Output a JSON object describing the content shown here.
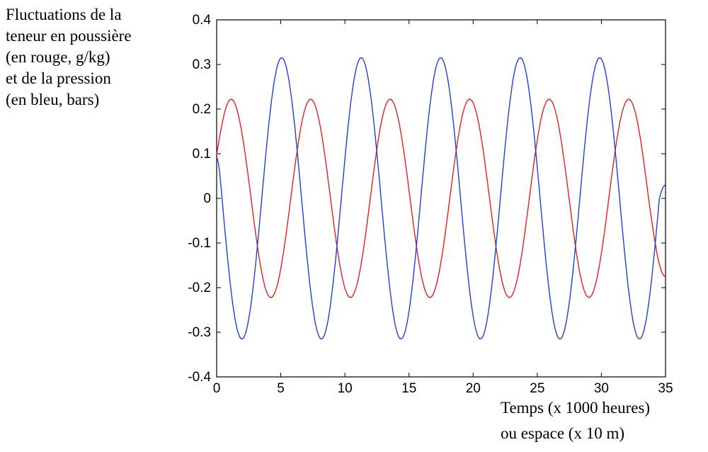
{
  "chart_data": {
    "type": "line",
    "ylabel_lines": [
      "Fluctuations de la",
      "teneur en poussière",
      "(en rouge, g/kg)",
      "et de la pression",
      "(en bleu, bars)"
    ],
    "xlabel_lines": [
      "Temps (x 1000 heures)",
      "ou espace (x 10 m)"
    ],
    "xlim": [
      0,
      35
    ],
    "ylim": [
      -0.4,
      0.4
    ],
    "xticks": [
      "0",
      "5",
      "10",
      "15",
      "20",
      "25",
      "30",
      "35"
    ],
    "yticks": [
      "0.4",
      "0.3",
      "0.2",
      "0.1",
      "0",
      "-0.1",
      "-0.2",
      "-0.3",
      "-0.4"
    ],
    "grid": false,
    "series": [
      {
        "color": "#e02020",
        "x": [
          0,
          1.13,
          2.68,
          4.23,
          5.78,
          7.33,
          8.88,
          10.43,
          11.98,
          13.53,
          15.08,
          16.63,
          18.18,
          19.73,
          21.28,
          22.83,
          24.38,
          25.93,
          27.48,
          29.03,
          30.58,
          32.13,
          33.68,
          35
        ],
        "y": [
          0.098,
          0.222,
          0.001,
          -0.222,
          0.0,
          0.222,
          0.0,
          -0.222,
          0.0,
          0.222,
          0.0,
          -0.222,
          0.0,
          0.222,
          0.0,
          -0.222,
          0.0,
          0.222,
          0.0,
          -0.222,
          0.0,
          0.222,
          0.0,
          -0.175
        ]
      },
      {
        "color": "#2040d0",
        "x": [
          0,
          0.42,
          1.97,
          3.52,
          5.07,
          6.62,
          8.17,
          9.72,
          11.27,
          12.82,
          14.37,
          15.92,
          17.47,
          19.02,
          20.57,
          22.12,
          23.67,
          25.22,
          26.77,
          28.32,
          29.87,
          31.42,
          32.97,
          34.52,
          35
        ],
        "y": [
          0.09,
          0.0,
          -0.315,
          0.0,
          0.315,
          0.0,
          -0.315,
          0.0,
          0.315,
          0.0,
          -0.315,
          0.0,
          0.315,
          0.0,
          -0.315,
          0.0,
          0.315,
          0.0,
          -0.315,
          0.0,
          0.315,
          0.0,
          -0.315,
          0.0,
          0.03
        ]
      }
    ]
  }
}
